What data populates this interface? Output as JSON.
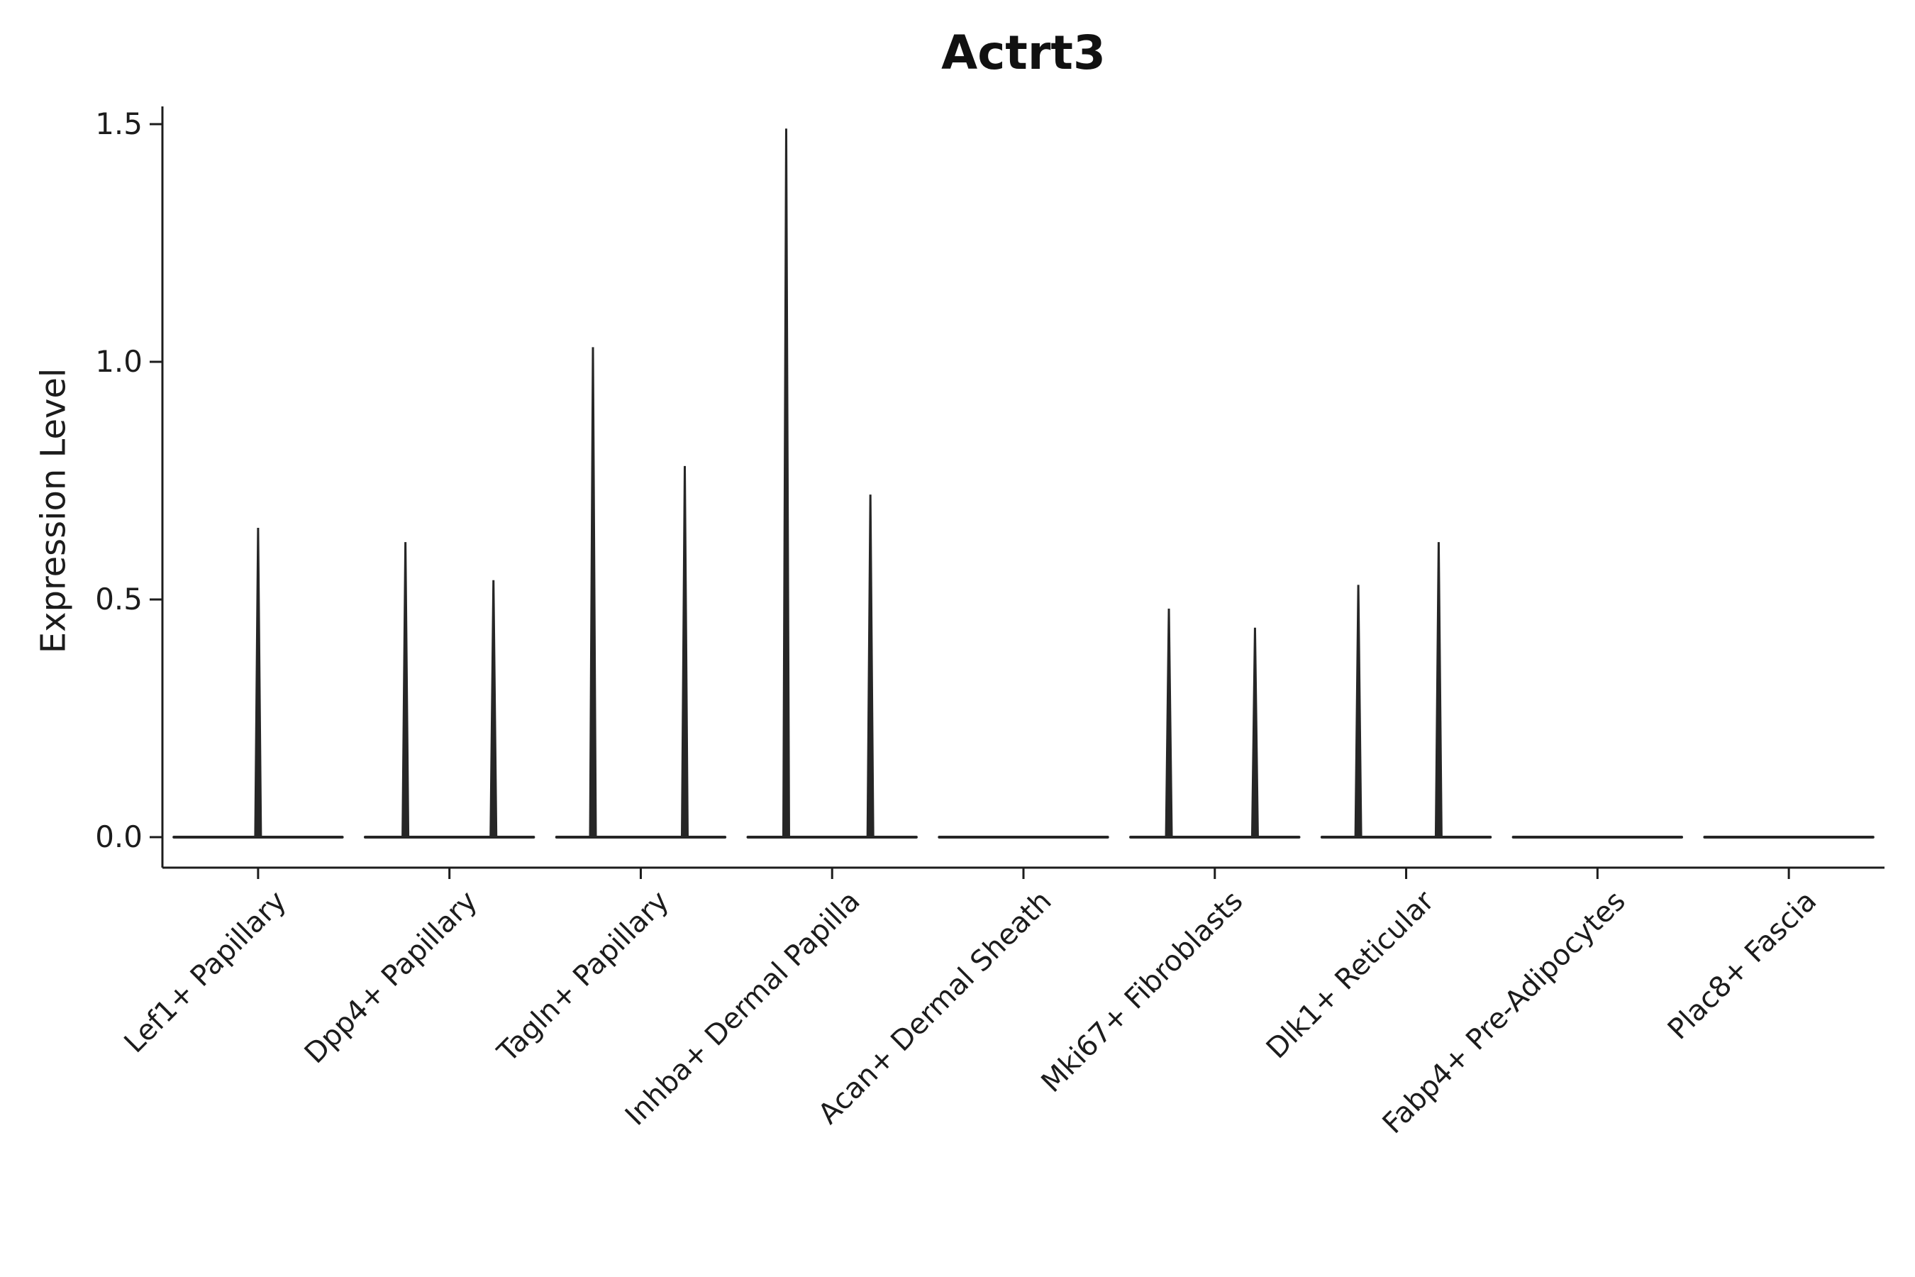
{
  "figure": {
    "title": "Actrt3",
    "ylabel": "Expression Level"
  },
  "colors": {
    "ink": "#1c1c1c",
    "violin": "#262626",
    "background": "#ffffff"
  },
  "chart_data": {
    "type": "violin",
    "title": "Actrt3",
    "xlabel": "",
    "ylabel": "Expression Level",
    "ylim": [
      0.0,
      1.5
    ],
    "yticks": [
      0.0,
      0.5,
      1.0,
      1.5
    ],
    "ytick_labels": [
      "0.0",
      "0.5",
      "1.0",
      "1.5"
    ],
    "grid": false,
    "legend": null,
    "x_tick_rotation": 45,
    "categories": [
      "Lef1+ Papillary",
      "Dpp4+ Papillary",
      "Tagln+ Papillary",
      "Inhba+ Dermal Papilla",
      "Acan+ Dermal Sheath",
      "Mki67+ Fibroblasts",
      "Dlk1+ Reticular",
      "Fabp4+ Pre-Adipocytes",
      "Plac8+ Fascia"
    ],
    "violins": [
      {
        "category": "Lef1+ Papillary",
        "baseline": 0.0,
        "peaks": [
          {
            "offset_frac": 0.0,
            "value": 0.65
          }
        ]
      },
      {
        "category": "Dpp4+ Papillary",
        "baseline": 0.0,
        "peaks": [
          {
            "offset_frac": -0.23,
            "value": 0.62
          },
          {
            "offset_frac": 0.23,
            "value": 0.54
          }
        ]
      },
      {
        "category": "Tagln+ Papillary",
        "baseline": 0.0,
        "peaks": [
          {
            "offset_frac": -0.25,
            "value": 1.03
          },
          {
            "offset_frac": 0.23,
            "value": 0.78
          }
        ]
      },
      {
        "category": "Inhba+ Dermal Papilla",
        "baseline": 0.0,
        "peaks": [
          {
            "offset_frac": -0.24,
            "value": 1.49
          },
          {
            "offset_frac": 0.2,
            "value": 0.72
          }
        ]
      },
      {
        "category": "Acan+ Dermal Sheath",
        "baseline": 0.0,
        "peaks": []
      },
      {
        "category": "Mki67+ Fibroblasts",
        "baseline": 0.0,
        "peaks": [
          {
            "offset_frac": -0.24,
            "value": 0.48
          },
          {
            "offset_frac": 0.21,
            "value": 0.44
          }
        ]
      },
      {
        "category": "Dlk1+ Reticular",
        "baseline": 0.0,
        "peaks": [
          {
            "offset_frac": -0.25,
            "value": 0.53
          },
          {
            "offset_frac": 0.17,
            "value": 0.62
          }
        ]
      },
      {
        "category": "Fabp4+ Pre-Adipocytes",
        "baseline": 0.0,
        "peaks": []
      },
      {
        "category": "Plac8+ Fascia",
        "baseline": 0.0,
        "peaks": []
      }
    ]
  }
}
